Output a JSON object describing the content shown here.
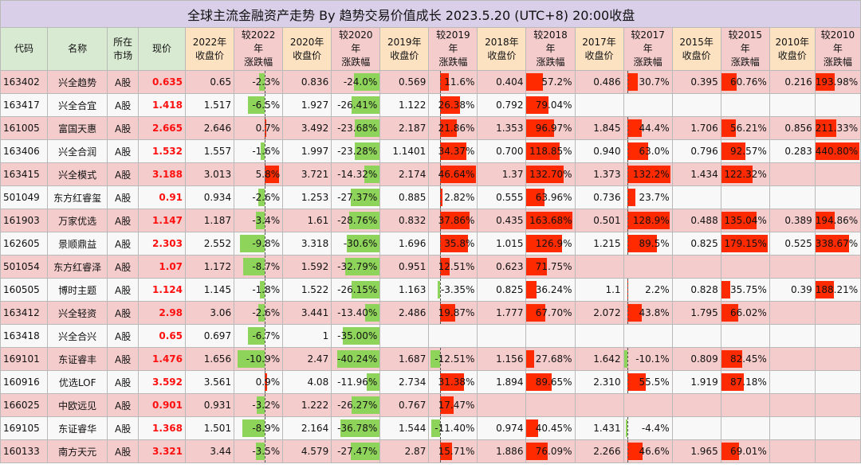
{
  "title": "全球主流金融资产走势 By 趋势交易价值成长 2023.5.20 (UTC+8) 20:00收盘",
  "headers": [
    "代码",
    "名称",
    "所在\n市场",
    "现价",
    "2022年\n收盘价",
    "较2022年\n涨跌幅",
    "2020年\n收盘价",
    "较2020年\n涨跌幅",
    "2019年\n收盘价",
    "较2019年\n涨跌幅",
    "2018年\n收盘价",
    "较2018年\n涨跌幅",
    "2017年\n收盘价",
    "较2017年\n涨跌幅",
    "2015年\n收盘价",
    "较2015年\n涨跌幅",
    "2010年\n收盘价",
    "较2010年\n涨跌幅"
  ],
  "colors": {
    "pos": "#ff2a00",
    "neg": "#8fd45a",
    "price": "#ff1010"
  },
  "rows": [
    [
      "163402",
      "兴全趋势",
      "A股",
      "0.635",
      "0.65",
      "-2.3%",
      "0.836",
      "-24.0%",
      "0.569",
      "11.6%",
      "0.404",
      "57.2%",
      "0.486",
      "30.7%",
      "0.395",
      "60.76%",
      "0.216",
      "193.98%"
    ],
    [
      "163417",
      "兴全合宜",
      "A股",
      "1.418",
      "1.517",
      "-6.5%",
      "1.927",
      "-26.41%",
      "1.122",
      "26.38%",
      "0.792",
      "79.04%",
      "",
      "",
      "",
      "",
      "",
      ""
    ],
    [
      "161005",
      "富国天惠",
      "A股",
      "2.665",
      "2.646",
      "0.7%",
      "3.492",
      "-23.68%",
      "2.187",
      "21.86%",
      "1.353",
      "96.97%",
      "1.845",
      "44.4%",
      "1.706",
      "56.21%",
      "0.856",
      "211.33%"
    ],
    [
      "163406",
      "兴全合润",
      "A股",
      "1.532",
      "1.557",
      "-1.6%",
      "1.997",
      "-23.28%",
      "1.1401",
      "34.37%",
      "0.700",
      "118.85%",
      "0.940",
      "63.0%",
      "0.796",
      "92.57%",
      "0.283",
      "440.80%"
    ],
    [
      "163415",
      "兴全模式",
      "A股",
      "3.188",
      "3.013",
      "5.8%",
      "3.721",
      "-14.32%",
      "2.174",
      "46.64%",
      "1.37",
      "132.70%",
      "1.373",
      "132.2%",
      "1.434",
      "122.32%",
      "",
      ""
    ],
    [
      "501049",
      "东方红睿玺",
      "A股",
      "0.91",
      "0.934",
      "-2.6%",
      "1.253",
      "-27.37%",
      "0.885",
      "2.82%",
      "0.555",
      "63.96%",
      "0.736",
      "23.7%",
      "",
      "",
      "",
      ""
    ],
    [
      "161903",
      "万家优选",
      "A股",
      "1.147",
      "1.187",
      "-3.4%",
      "1.61",
      "-28.76%",
      "0.832",
      "37.86%",
      "0.435",
      "163.68%",
      "0.501",
      "128.9%",
      "0.488",
      "135.04%",
      "0.389",
      "194.86%"
    ],
    [
      "162605",
      "景顺鼎益",
      "A股",
      "2.303",
      "2.552",
      "-9.8%",
      "3.318",
      "-30.6%",
      "1.696",
      "35.8%",
      "1.015",
      "126.9%",
      "1.215",
      "89.5%",
      "0.825",
      "179.15%",
      "0.525",
      "338.67%"
    ],
    [
      "501054",
      "东方红睿泽",
      "A股",
      "1.07",
      "1.172",
      "-8.7%",
      "1.592",
      "-32.79%",
      "0.951",
      "12.51%",
      "0.623",
      "71.75%",
      "",
      "",
      "",
      "",
      "",
      ""
    ],
    [
      "160505",
      "博时主题",
      "A股",
      "1.124",
      "1.145",
      "-1.8%",
      "1.522",
      "-26.15%",
      "1.163",
      "-3.35%",
      "0.825",
      "36.24%",
      "1.1",
      "2.2%",
      "0.828",
      "35.75%",
      "0.39",
      "188.21%"
    ],
    [
      "163412",
      "兴全轻资",
      "A股",
      "2.98",
      "3.06",
      "-2.6%",
      "3.441",
      "-13.40%",
      "2.486",
      "19.87%",
      "1.777",
      "67.70%",
      "2.072",
      "43.8%",
      "1.795",
      "66.02%",
      "",
      ""
    ],
    [
      "163418",
      "兴全合兴",
      "A股",
      "0.65",
      "0.697",
      "-6.7%",
      "1",
      "-35.00%",
      "",
      "",
      "",
      "",
      "",
      "",
      "",
      "",
      "",
      ""
    ],
    [
      "169101",
      "东证睿丰",
      "A股",
      "1.476",
      "1.656",
      "-10.9%",
      "2.47",
      "-40.24%",
      "1.687",
      "-12.51%",
      "1.156",
      "27.68%",
      "1.642",
      "-10.1%",
      "0.809",
      "82.45%",
      "",
      ""
    ],
    [
      "160916",
      "优选LOF",
      "A股",
      "3.592",
      "3.561",
      "0.9%",
      "4.08",
      "-11.96%",
      "2.734",
      "31.38%",
      "1.894",
      "89.65%",
      "2.310",
      "55.5%",
      "1.919",
      "87.18%",
      "",
      ""
    ],
    [
      "166025",
      "中欧远见",
      "A股",
      "0.901",
      "0.931",
      "-3.2%",
      "1.222",
      "-26.27%",
      "0.767",
      "17.47%",
      "",
      "",
      "",
      "",
      "",
      "",
      "",
      ""
    ],
    [
      "169105",
      "东证睿华",
      "A股",
      "1.368",
      "1.501",
      "-8.9%",
      "2.164",
      "-36.78%",
      "1.544",
      "-11.40%",
      "0.974",
      "40.45%",
      "1.431",
      "-4.4%",
      "",
      "",
      "",
      ""
    ],
    [
      "160133",
      "南方天元",
      "A股",
      "3.321",
      "3.44",
      "-3.5%",
      "4.579",
      "-27.47%",
      "2.87",
      "15.71%",
      "1.886",
      "76.09%",
      "2.266",
      "46.6%",
      "1.965",
      "69.01%",
      "",
      ""
    ]
  ]
}
